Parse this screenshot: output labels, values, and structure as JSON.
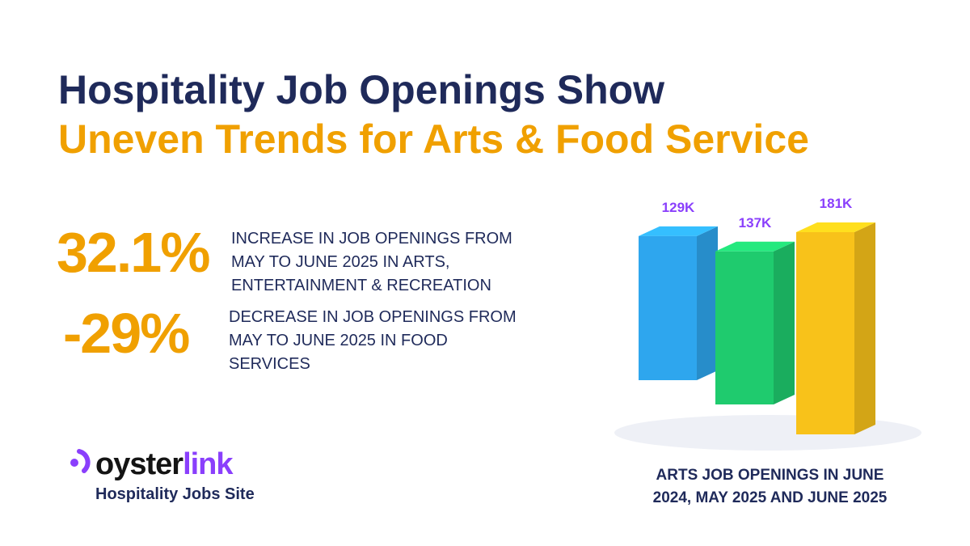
{
  "header": {
    "title_line1": "Hospitality Job Openings Show",
    "title_line2": "Uneven Trends for Arts & Food Service"
  },
  "stats": [
    {
      "figure": "32.1%",
      "lines": [
        "INCREASE IN JOB OPENINGS FROM",
        "MAY TO JUNE 2025 IN ARTS,",
        "ENTERTAINMENT & RECREATION"
      ]
    },
    {
      "figure": "-29%",
      "lines": [
        "DECREASE IN JOB OPENINGS FROM",
        "MAY TO JUNE 2025 IN FOOD",
        "SERVICES"
      ]
    }
  ],
  "logo": {
    "name_parts": [
      "oyster",
      "link"
    ],
    "tagline": "Hospitality Jobs Site"
  },
  "chart_data": {
    "type": "bar3d",
    "values": [
      129000,
      137000,
      181000
    ],
    "value_labels": [
      "129K",
      "137K",
      "181K"
    ],
    "colors": [
      "#2ea6ee",
      "#1fcb6e",
      "#f8c21a"
    ],
    "label_color": "#8a3ffc",
    "caption_lines": [
      "ARTS JOB OPENINGS IN JUNE",
      "2024, MAY 2025 AND JUNE 2025"
    ]
  }
}
